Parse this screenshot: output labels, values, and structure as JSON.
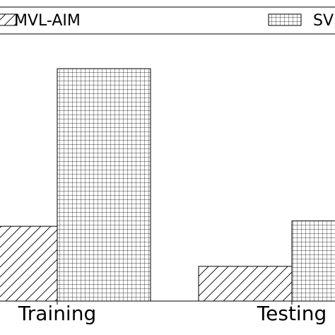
{
  "chart_data": {
    "type": "bar",
    "categories": [
      "Training",
      "Testing"
    ],
    "series": [
      {
        "name": "MVL-AIM",
        "values": [
          0.28,
          0.13
        ],
        "pattern": "diagonal-hatch"
      },
      {
        "name": "SV",
        "values": [
          0.87,
          0.3
        ],
        "pattern": "grid-hatch"
      }
    ],
    "legend": {
      "placement": "top",
      "entries": [
        "MVL-AIM",
        "SV"
      ]
    },
    "ylim": [
      0,
      1
    ],
    "grid": false,
    "colors": {
      "stroke": "#000000",
      "fill": "#ffffff"
    }
  }
}
